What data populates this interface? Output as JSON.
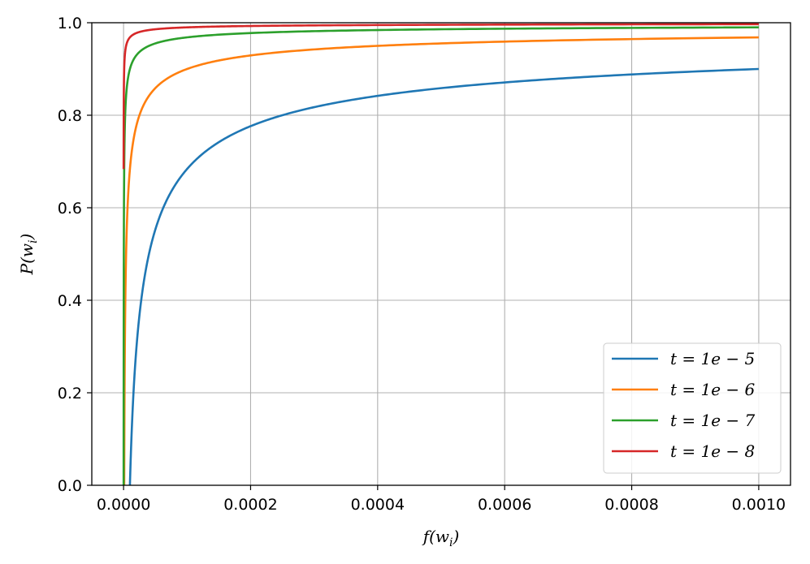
{
  "chart_data": {
    "type": "line",
    "title": "",
    "xlabel": "f(w_i)",
    "ylabel": "P(w_i)",
    "xlim": [
      -5e-05,
      0.00105
    ],
    "ylim": [
      0.0,
      1.0
    ],
    "x_ticks": [
      {
        "value": 0.0,
        "label": "0.0000"
      },
      {
        "value": 0.0002,
        "label": "0.0002"
      },
      {
        "value": 0.0004,
        "label": "0.0004"
      },
      {
        "value": 0.0006,
        "label": "0.0006"
      },
      {
        "value": 0.0008,
        "label": "0.0008"
      },
      {
        "value": 0.001,
        "label": "0.0010"
      }
    ],
    "y_ticks": [
      {
        "value": 0.0,
        "label": "0.0"
      },
      {
        "value": 0.2,
        "label": "0.2"
      },
      {
        "value": 0.4,
        "label": "0.4"
      },
      {
        "value": 0.6,
        "label": "0.6"
      },
      {
        "value": 0.8,
        "label": "0.8"
      },
      {
        "value": 1.0,
        "label": "1.0"
      }
    ],
    "grid": true,
    "legend_position": "bottom-right",
    "series": [
      {
        "name": "t = 1e − 5",
        "t": 1e-05,
        "color": "#1f77b4",
        "x": [
          1e-05,
          1.2e-05,
          1.5e-05,
          2e-05,
          2.5e-05,
          3e-05,
          4e-05,
          5e-05,
          6e-05,
          8e-05,
          0.0001,
          0.00012,
          0.00015,
          0.0002,
          0.00025,
          0.0003,
          0.0004,
          0.0005,
          0.0006,
          0.0007,
          0.0008,
          0.0009,
          0.001
        ],
        "y": [
          0.0,
          0.087,
          0.184,
          0.293,
          0.368,
          0.423,
          0.5,
          0.553,
          0.592,
          0.646,
          0.684,
          0.711,
          0.742,
          0.776,
          0.8,
          0.817,
          0.842,
          0.859,
          0.871,
          0.88,
          0.888,
          0.895,
          0.9
        ]
      },
      {
        "name": "t = 1e − 6",
        "t": 1e-06,
        "color": "#ff7f0e",
        "x": [
          1e-06,
          1.5e-06,
          2e-06,
          3e-06,
          4e-06,
          5e-06,
          7e-06,
          1e-05,
          1.5e-05,
          2e-05,
          3e-05,
          5e-05,
          7e-05,
          0.0001,
          0.00015,
          0.0002,
          0.0003,
          0.0004,
          0.0005,
          0.0006,
          0.0007,
          0.0008,
          0.0009,
          0.001
        ],
        "y": [
          0.0,
          0.184,
          0.293,
          0.423,
          0.5,
          0.553,
          0.622,
          0.684,
          0.742,
          0.776,
          0.817,
          0.859,
          0.88,
          0.9,
          0.918,
          0.929,
          0.942,
          0.95,
          0.955,
          0.959,
          0.962,
          0.965,
          0.967,
          0.968
        ]
      },
      {
        "name": "t = 1e − 7",
        "t": 1e-07,
        "color": "#2ca02c",
        "x": [
          1e-07,
          2e-07,
          3e-07,
          5e-07,
          1e-06,
          2e-06,
          3e-06,
          5e-06,
          1e-05,
          2e-05,
          3e-05,
          5e-05,
          0.0001,
          0.0002,
          0.0004,
          0.0006,
          0.0008,
          0.001
        ],
        "y": [
          0.0,
          0.293,
          0.423,
          0.553,
          0.684,
          0.776,
          0.817,
          0.859,
          0.9,
          0.929,
          0.942,
          0.955,
          0.968,
          0.978,
          0.984,
          0.987,
          0.989,
          0.99
        ]
      },
      {
        "name": "t = 1e − 8",
        "t": 1e-08,
        "color": "#d62728",
        "x": [
          1e-07,
          2e-07,
          5e-07,
          1e-06,
          2e-06,
          5e-06,
          1e-05,
          2e-05,
          5e-05,
          0.0001,
          0.0002,
          0.0005,
          0.001
        ],
        "y": [
          0.684,
          0.776,
          0.859,
          0.9,
          0.929,
          0.955,
          0.968,
          0.978,
          0.986,
          0.99,
          0.993,
          0.996,
          0.997
        ]
      }
    ]
  }
}
